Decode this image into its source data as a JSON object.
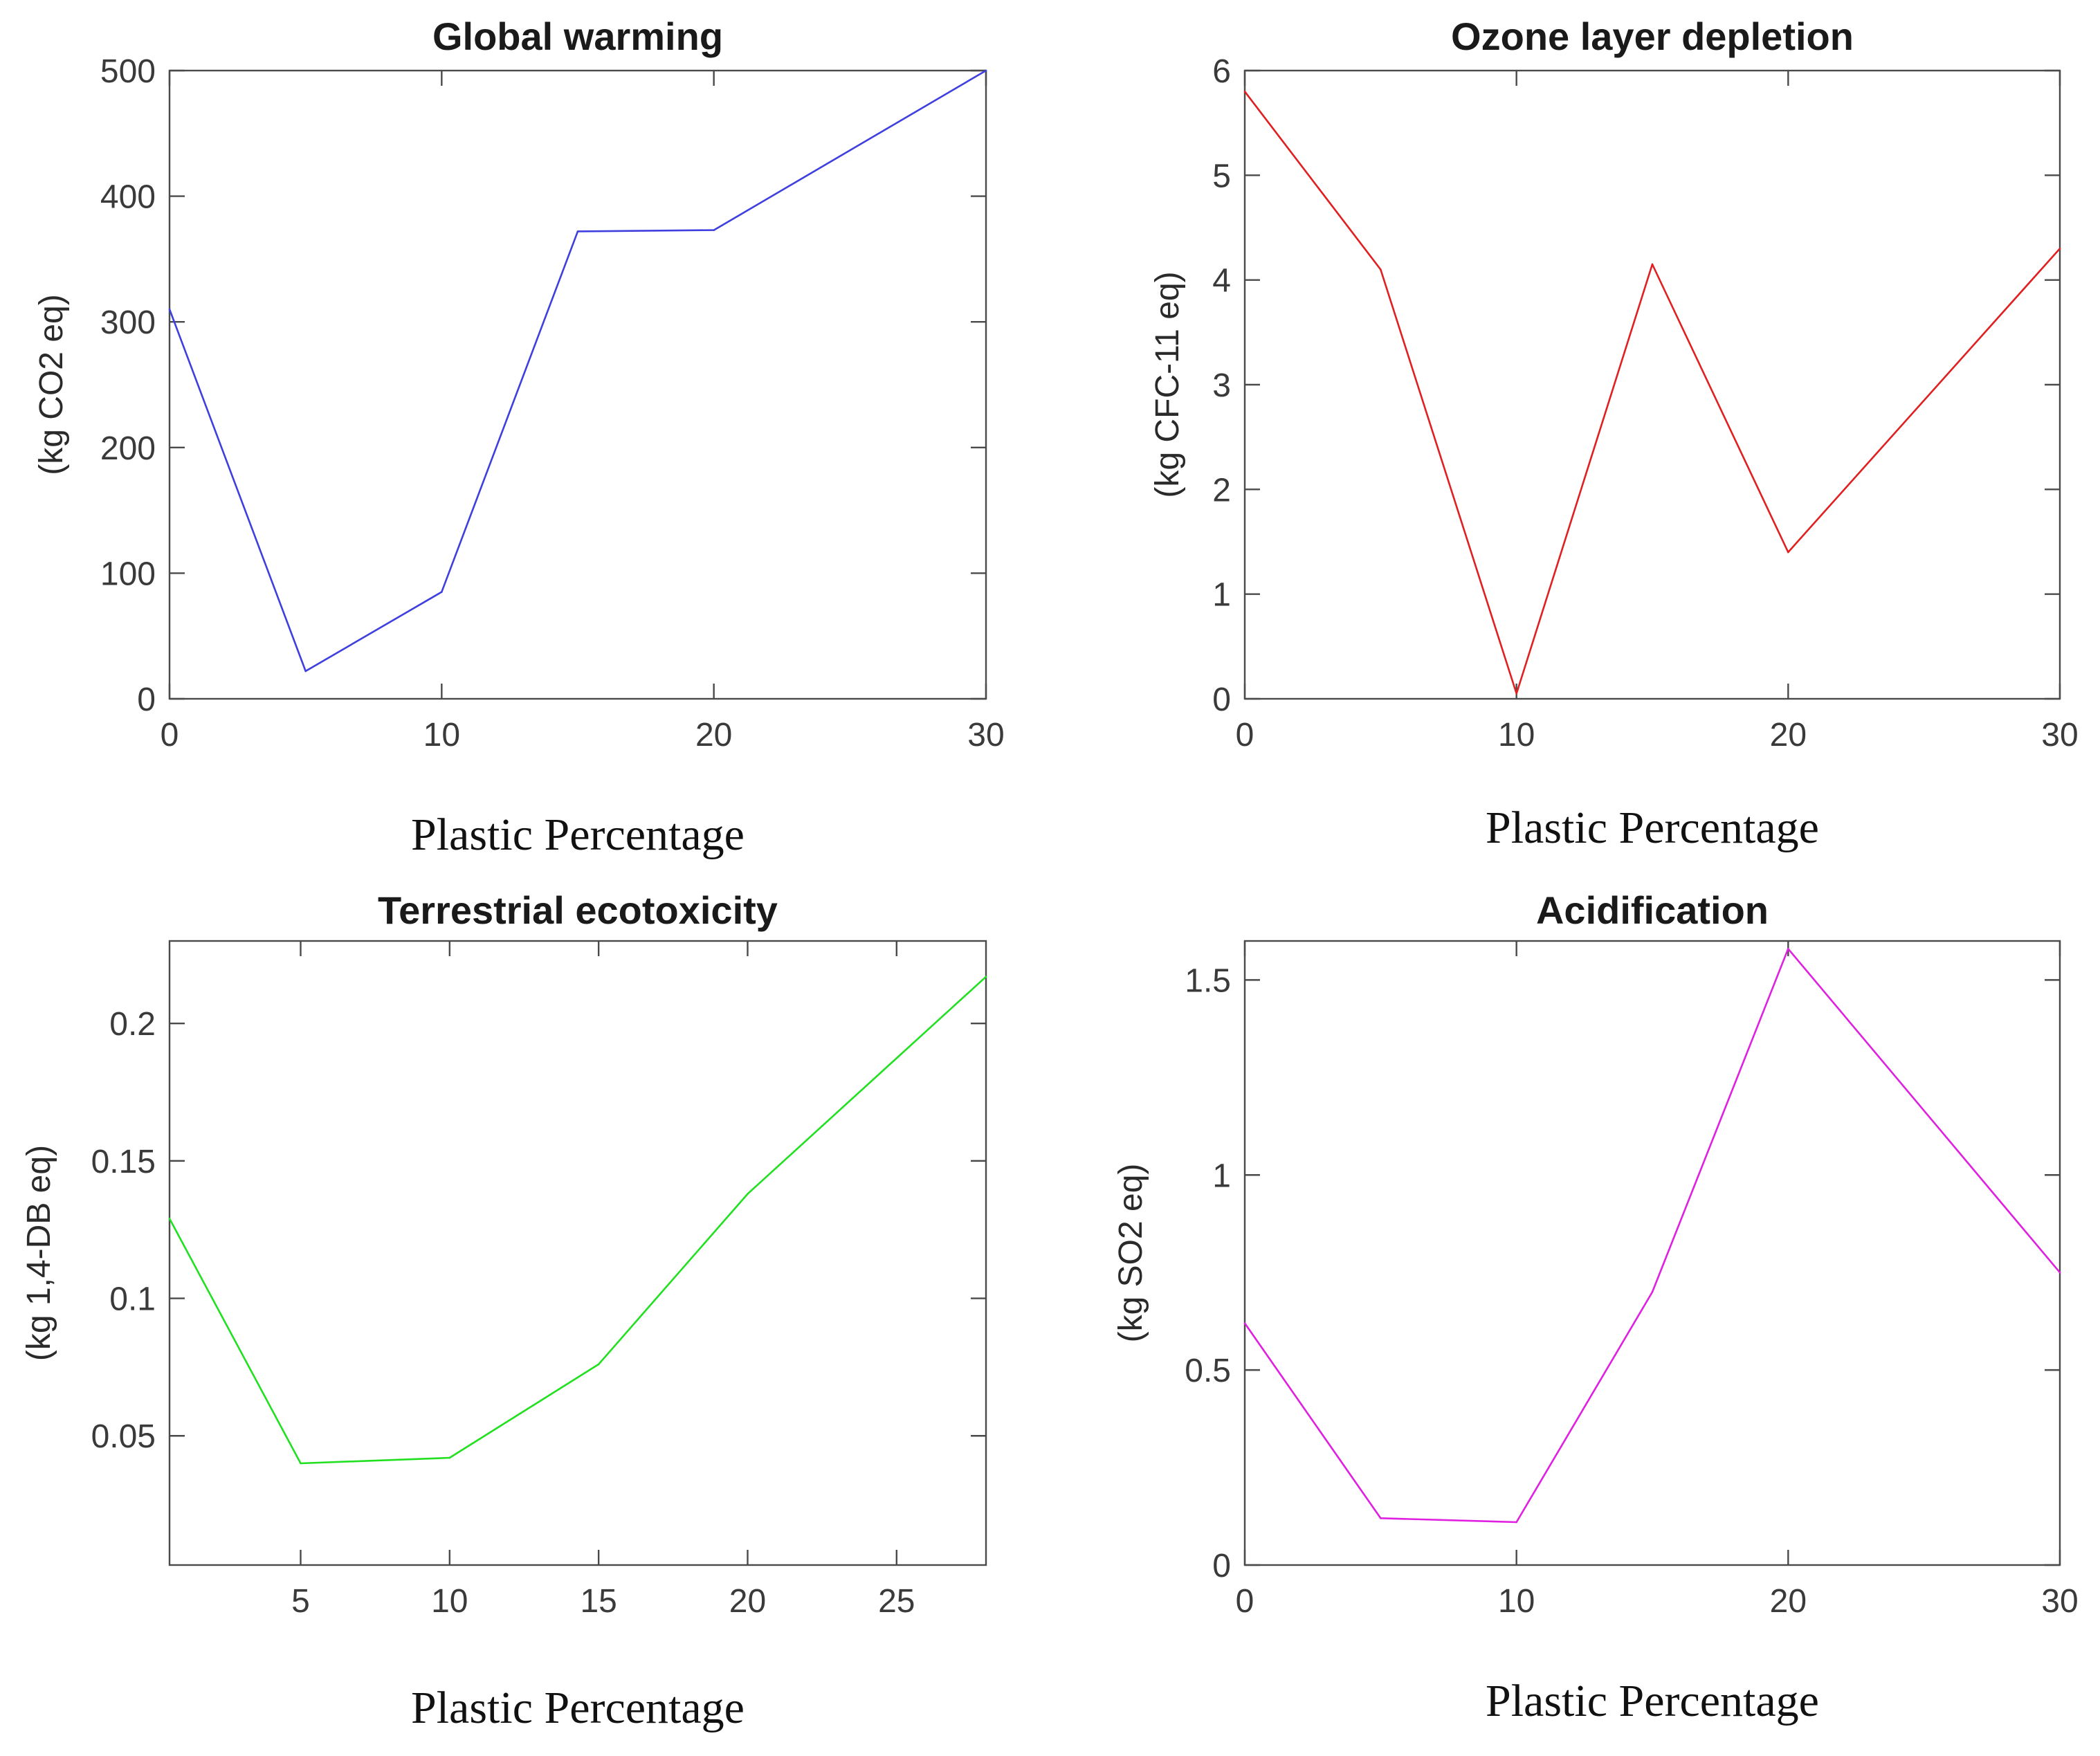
{
  "chart_data": [
    {
      "type": "line",
      "title": "Global warming",
      "xlabel": "Plastic Percentage",
      "ylabel": "(kg CO2 eq)",
      "color": "#3f3fe0",
      "x": [
        0,
        5,
        10,
        15,
        20,
        30
      ],
      "values": [
        310,
        22,
        85,
        372,
        373,
        500
      ],
      "xlim": [
        0,
        30
      ],
      "ylim": [
        0,
        500
      ],
      "xticks": [
        0,
        10,
        20,
        30
      ],
      "yticks": [
        0,
        100,
        200,
        300,
        400,
        500
      ],
      "xtick_labels": [
        "0",
        "10",
        "20",
        "30"
      ],
      "ytick_labels": [
        "0",
        "100",
        "200",
        "300",
        "400",
        "500"
      ],
      "grid": false
    },
    {
      "type": "line",
      "title": "Ozone layer depletion",
      "xlabel": "Plastic Percentage",
      "ylabel": "(kg CFC-11 eq)",
      "color": "#e02020",
      "x": [
        0,
        5,
        10,
        15,
        20,
        30
      ],
      "values": [
        5.8,
        4.1,
        0.05,
        4.15,
        1.4,
        4.3
      ],
      "xlim": [
        0,
        30
      ],
      "ylim": [
        0,
        6
      ],
      "xticks": [
        0,
        10,
        20,
        30
      ],
      "yticks": [
        0,
        1,
        2,
        3,
        4,
        5,
        6
      ],
      "xtick_labels": [
        "0",
        "10",
        "20",
        "30"
      ],
      "ytick_labels": [
        "0",
        "1",
        "2",
        "3",
        "4",
        "5",
        "6"
      ],
      "grid": false
    },
    {
      "type": "line",
      "title": "Terrestrial ecotoxicity",
      "xlabel": "Plastic Percentage",
      "ylabel": "(kg 1,4-DB eq)",
      "color": "#20e020",
      "x": [
        0.6,
        5,
        10,
        15,
        20,
        28
      ],
      "values": [
        0.129,
        0.04,
        0.042,
        0.076,
        0.138,
        0.217
      ],
      "xlim": [
        0.6,
        28
      ],
      "ylim": [
        0.003,
        0.23
      ],
      "xticks": [
        5,
        10,
        15,
        20,
        25
      ],
      "yticks": [
        0.05,
        0.1,
        0.15,
        0.2
      ],
      "xtick_labels": [
        "5",
        "10",
        "15",
        "20",
        "25"
      ],
      "ytick_labels": [
        "0.05",
        "0.1",
        "0.15",
        "0.2"
      ],
      "grid": false
    },
    {
      "type": "line",
      "title": "Acidification",
      "xlabel": "Plastic Percentage",
      "ylabel": "(kg SO2 eq)",
      "color": "#e020e0",
      "x": [
        0,
        5,
        10,
        15,
        20,
        30
      ],
      "values": [
        0.62,
        0.12,
        0.11,
        0.7,
        1.58,
        0.75
      ],
      "xlim": [
        0,
        30
      ],
      "ylim": [
        0,
        1.6
      ],
      "xticks": [
        0,
        10,
        20,
        30
      ],
      "yticks": [
        0,
        0.5,
        1,
        1.5
      ],
      "xtick_labels": [
        "0",
        "10",
        "20",
        "30"
      ],
      "ytick_labels": [
        "0",
        "0.5",
        "1",
        "1.5"
      ],
      "grid": false
    }
  ]
}
